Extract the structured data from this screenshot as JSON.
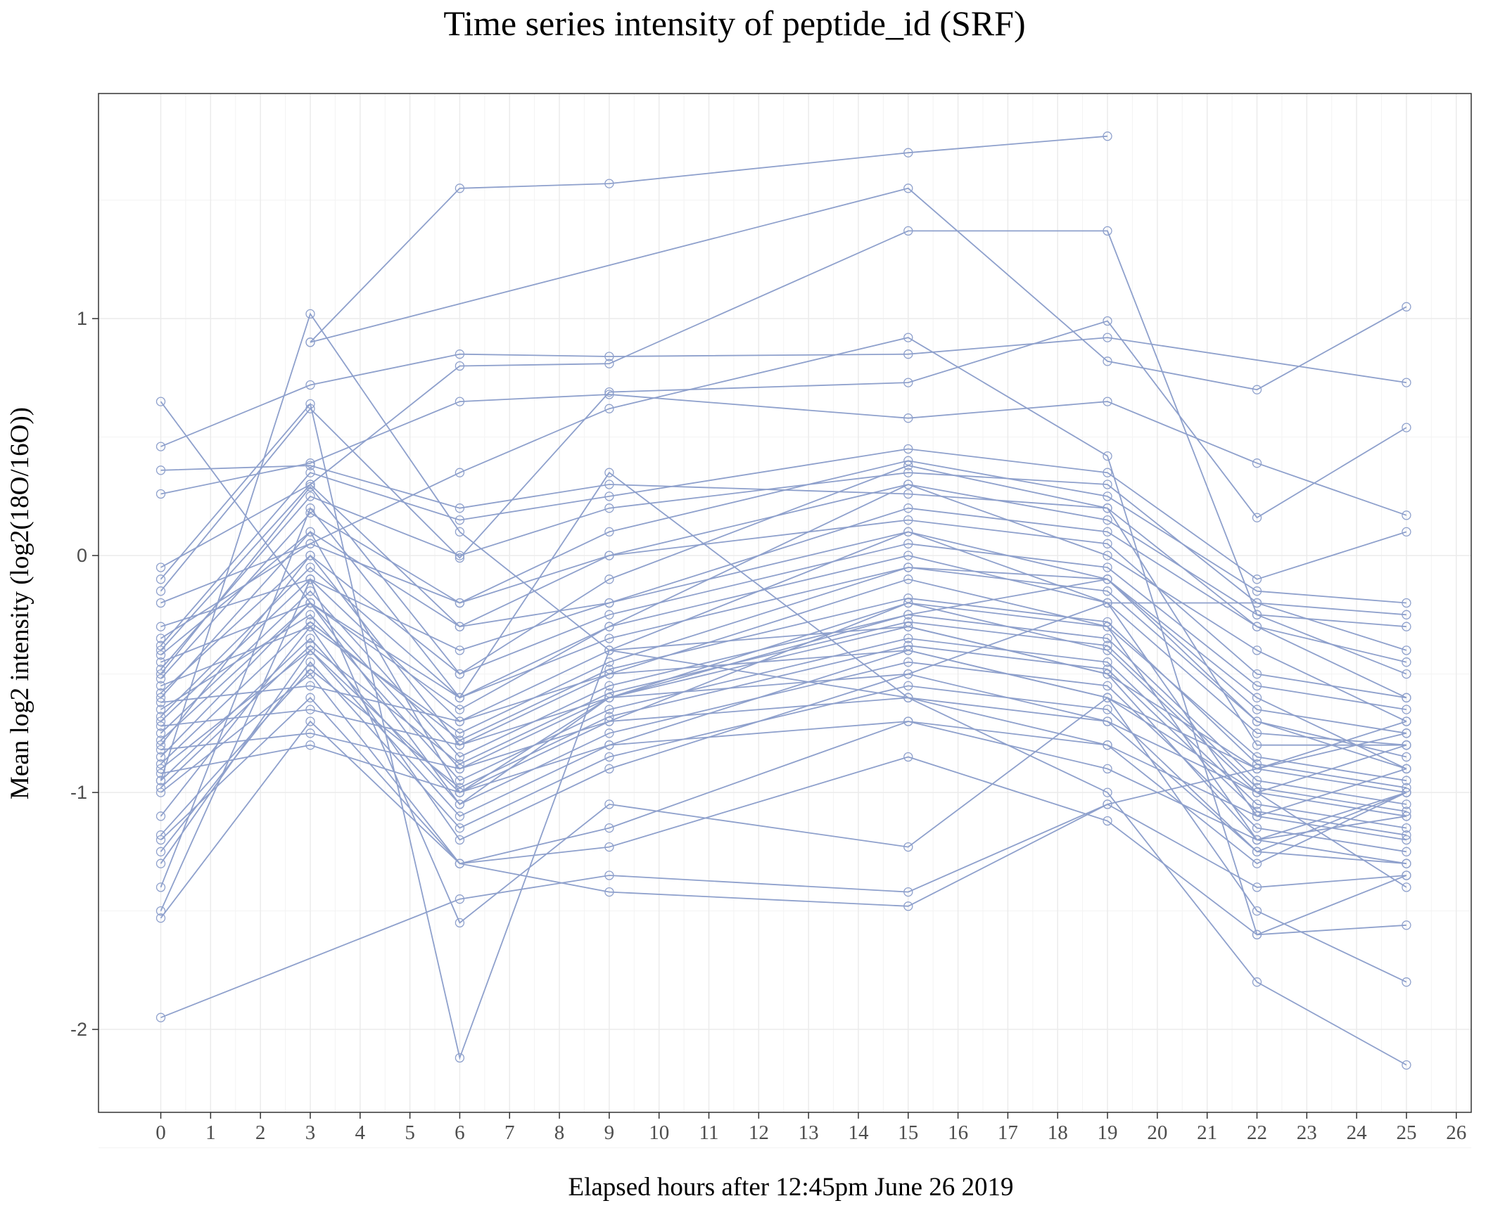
{
  "chart_data": {
    "type": "line",
    "title": "Time series intensity of peptide_id (SRF)",
    "xlabel": "Elapsed hours after 12:45pm June 26 2019",
    "ylabel": "Mean log2 intensity (log2(18O/16O))",
    "x_ticks": [
      "0",
      "1",
      "2",
      "3",
      "4",
      "5",
      "6",
      "7",
      "8",
      "9",
      "10",
      "11",
      "12",
      "13",
      "14",
      "15",
      "16",
      "17",
      "18",
      "19",
      "20",
      "21",
      "22",
      "23",
      "24",
      "25",
      "26"
    ],
    "y_ticks": [
      "-2",
      "-1",
      "0",
      "1"
    ],
    "xlim": [
      -1.25,
      26.3
    ],
    "ylim": [
      -2.35,
      1.95
    ],
    "x": [
      0,
      3,
      6,
      9,
      15,
      19,
      22,
      25
    ],
    "grid": true,
    "legend": "none",
    "colors": {
      "series": "#8ea0cc",
      "panel_border": "#333333",
      "grid": "#ebebeb"
    },
    "series": [
      {
        "values": [
          -1.95,
          null,
          -1.45,
          -1.35,
          -1.42,
          -1.05,
          -1.4,
          -1.35
        ]
      },
      {
        "values": [
          -0.95,
          1.02,
          0.1,
          -0.4,
          -0.3,
          -0.5,
          -1.2,
          -1.1
        ]
      },
      {
        "values": [
          null,
          0.9,
          1.55,
          1.57,
          1.7,
          1.77,
          null,
          null
        ]
      },
      {
        "values": [
          null,
          0.9,
          null,
          null,
          1.55,
          0.82,
          0.7,
          1.05
        ]
      },
      {
        "values": [
          0.65,
          null,
          -1.05,
          -0.6,
          -0.25,
          -0.1,
          -0.7,
          -0.9
        ]
      },
      {
        "values": [
          0.46,
          0.72,
          0.85,
          0.84,
          0.85,
          0.92,
          null,
          0.73
        ]
      },
      {
        "values": [
          0.36,
          0.38,
          0.2,
          0.3,
          0.26,
          0.2,
          -0.3,
          -0.6
        ]
      },
      {
        "values": [
          0.26,
          0.39,
          0.65,
          0.68,
          0.58,
          0.65,
          0.39,
          0.17
        ]
      },
      {
        "values": [
          -0.05,
          0.3,
          0.8,
          0.81,
          1.37,
          1.37,
          -0.25,
          -0.5
        ]
      },
      {
        "values": [
          -0.1,
          0.64,
          -2.12,
          -0.4,
          -0.6,
          -0.7,
          -1.25,
          -1.0
        ]
      },
      {
        "values": [
          -0.15,
          0.62,
          -0.01,
          0.69,
          0.73,
          0.99,
          0.16,
          0.54
        ]
      },
      {
        "values": [
          -0.35,
          0.05,
          0.35,
          0.62,
          0.92,
          0.42,
          -1.6,
          -1.56
        ]
      },
      {
        "values": [
          -0.4,
          0.3,
          -0.3,
          -0.2,
          0.1,
          -0.2,
          -0.2,
          -0.4
        ]
      },
      {
        "values": [
          -0.5,
          0.29,
          -0.5,
          -0.1,
          0.38,
          0.2,
          -0.8,
          -0.8
        ]
      },
      {
        "values": [
          -0.6,
          0.1,
          -1.0,
          -0.7,
          -0.2,
          -0.4,
          -1.0,
          -1.1
        ]
      },
      {
        "values": [
          -0.7,
          -0.1,
          -0.7,
          -0.4,
          0.1,
          -0.1,
          -0.6,
          -0.9
        ]
      },
      {
        "values": [
          -0.8,
          0.0,
          -0.8,
          -0.5,
          -0.1,
          -0.3,
          -1.2,
          -1.3
        ]
      },
      {
        "values": [
          -0.85,
          -0.2,
          -0.6,
          -0.3,
          0.3,
          0.0,
          -0.4,
          -0.7
        ]
      },
      {
        "values": [
          -0.9,
          -0.4,
          -1.1,
          -0.8,
          -0.4,
          -0.6,
          -1.5,
          -1.8
        ]
      },
      {
        "values": [
          -1.0,
          -0.5,
          -1.3,
          -1.15,
          -0.7,
          -0.8,
          -1.3,
          -1.0
        ]
      },
      {
        "values": [
          -1.1,
          -0.3,
          -1.2,
          -0.9,
          -0.5,
          -0.2,
          -1.1,
          -1.2
        ]
      },
      {
        "values": [
          -1.2,
          -0.6,
          -1.3,
          -1.23,
          -0.85,
          -1.12,
          -1.6,
          -1.35
        ]
      },
      {
        "values": [
          -1.3,
          -0.4,
          -1.0,
          -0.6,
          -0.3,
          -0.5,
          -0.9,
          -1.0
        ]
      },
      {
        "values": [
          -1.4,
          0.2,
          -0.6,
          0.35,
          -0.6,
          -1.0,
          -1.8,
          -2.15
        ]
      },
      {
        "values": [
          -1.5,
          -0.1,
          -1.55,
          -1.05,
          -1.23,
          -0.6,
          -1.0,
          -1.4
        ]
      },
      {
        "values": [
          -1.53,
          -0.7,
          -1.3,
          -1.42,
          -1.48,
          -1.05,
          -0.9,
          -0.75
        ]
      },
      {
        "values": [
          -0.2,
          0.05,
          -0.2,
          0.0,
          0.15,
          0.05,
          -0.5,
          -0.6
        ]
      },
      {
        "values": [
          -0.3,
          -0.1,
          -0.4,
          -0.2,
          0.2,
          0.1,
          -0.3,
          -0.45
        ]
      },
      {
        "values": [
          -0.45,
          -0.2,
          -0.9,
          -0.6,
          -0.2,
          -0.3,
          -0.85,
          -0.95
        ]
      },
      {
        "values": [
          -0.55,
          -0.3,
          -0.75,
          -0.45,
          -0.05,
          -0.15,
          -0.7,
          -0.85
        ]
      },
      {
        "values": [
          -0.65,
          -0.25,
          -0.95,
          -0.65,
          -0.35,
          -0.45,
          -1.05,
          -1.15
        ]
      },
      {
        "values": [
          -0.75,
          -0.15,
          -0.85,
          -0.55,
          -0.25,
          -0.35,
          -0.95,
          -1.05
        ]
      },
      {
        "values": [
          -0.95,
          -0.35,
          -1.05,
          -0.75,
          -0.45,
          -0.55,
          -1.15,
          -1.25
        ]
      },
      {
        "values": [
          -1.25,
          -0.45,
          -1.15,
          -0.85,
          -0.55,
          -0.65,
          -1.25,
          -1.3
        ]
      },
      {
        "values": [
          -0.58,
          0.0,
          -0.5,
          -0.25,
          0.05,
          -0.05,
          -0.55,
          -0.65
        ]
      },
      {
        "values": [
          -0.68,
          -0.05,
          -0.6,
          -0.35,
          -0.05,
          -0.1,
          -0.65,
          -0.75
        ]
      },
      {
        "values": [
          -0.78,
          -0.2,
          -0.65,
          -0.3,
          0.0,
          -0.2,
          -0.75,
          -0.8
        ]
      },
      {
        "values": [
          -0.88,
          -0.28,
          -0.78,
          -0.48,
          -0.18,
          -0.28,
          -0.88,
          -0.98
        ]
      },
      {
        "values": [
          -0.98,
          -0.38,
          -0.88,
          -0.58,
          -0.28,
          -0.38,
          -0.98,
          -1.08
        ]
      },
      {
        "values": [
          -1.18,
          -0.48,
          -0.98,
          -0.68,
          -0.38,
          -0.48,
          -1.08,
          -1.18
        ]
      },
      {
        "values": [
          -0.42,
          0.1,
          -0.3,
          0.0,
          0.3,
          0.15,
          -0.25,
          -0.3
        ]
      },
      {
        "values": [
          -0.52,
          0.18,
          -0.2,
          0.1,
          0.4,
          0.25,
          -0.15,
          -0.2
        ]
      },
      {
        "values": [
          -0.62,
          -0.55,
          -0.7,
          -0.5,
          -0.4,
          -0.6,
          -0.9,
          -0.7
        ]
      },
      {
        "values": [
          -0.72,
          -0.65,
          -0.8,
          -0.6,
          -0.5,
          -0.7,
          -1.0,
          -0.8
        ]
      },
      {
        "values": [
          -0.82,
          -0.75,
          -0.9,
          -0.7,
          -0.6,
          -0.8,
          -1.1,
          -0.9
        ]
      },
      {
        "values": [
          -0.92,
          -0.8,
          -1.0,
          -0.8,
          -0.7,
          -0.9,
          -1.2,
          -1.0
        ]
      },
      {
        "values": [
          -0.48,
          0.25,
          0.0,
          0.2,
          0.35,
          0.3,
          -0.2,
          -0.25
        ]
      },
      {
        "values": [
          -0.38,
          0.35,
          0.15,
          0.25,
          0.45,
          0.35,
          -0.1,
          0.1
        ]
      }
    ]
  }
}
